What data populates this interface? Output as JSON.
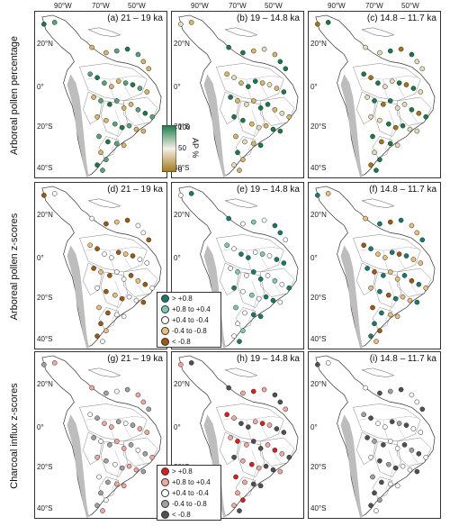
{
  "lon_labels": [
    "90°W",
    "70°W",
    "50°W"
  ],
  "lat_labels": [
    "20°N",
    "0°",
    "20°S",
    "40°S"
  ],
  "row_titles": [
    "Arboreal pollen percentage",
    "Arboreal pollen z-scores",
    "Charcoal influx z-scores"
  ],
  "panels": [
    {
      "label": "(a) 21 – 19 ka"
    },
    {
      "label": "(b) 19 – 14.8 ka"
    },
    {
      "label": "(c) 14.8 – 11.7 ka"
    },
    {
      "label": "(d) 21 – 19 ka"
    },
    {
      "label": "(e) 19 – 14.8 ka"
    },
    {
      "label": "(f) 14.8 – 11.7 ka"
    },
    {
      "label": "(g) 21 – 19 ka"
    },
    {
      "label": "(h) 19 – 14.8 ka"
    },
    {
      "label": "(i) 14.8 – 11.7 ka"
    }
  ],
  "ap_colorbar": {
    "title": "AP %",
    "ticks": [
      "100",
      "50",
      "0"
    ],
    "low_color": "#a07818",
    "mid_color": "#f5f0e6",
    "high_color": "#1a7a4a"
  },
  "pollen_legend": {
    "items": [
      {
        "label": "> +0.8",
        "color": "#1a7a6a"
      },
      {
        "label": "+0.8 to +0.4",
        "color": "#7fc8b8"
      },
      {
        "label": "+0.4 to -0.4",
        "color": "#ffffff"
      },
      {
        "label": "-0.4 to -0.8",
        "color": "#e8c07a"
      },
      {
        "label": "< -0.8",
        "color": "#9a5a12"
      }
    ]
  },
  "charcoal_legend": {
    "items": [
      {
        "label": "> +0.8",
        "color": "#d42020"
      },
      {
        "label": "+0.8 to +0.4",
        "color": "#f0a8a0"
      },
      {
        "label": "+0.4 to -0.4",
        "color": "#ffffff"
      },
      {
        "label": "-0.4 to -0.8",
        "color": "#a0a0a0"
      },
      {
        "label": "< -0.8",
        "color": "#505050"
      }
    ]
  }
}
